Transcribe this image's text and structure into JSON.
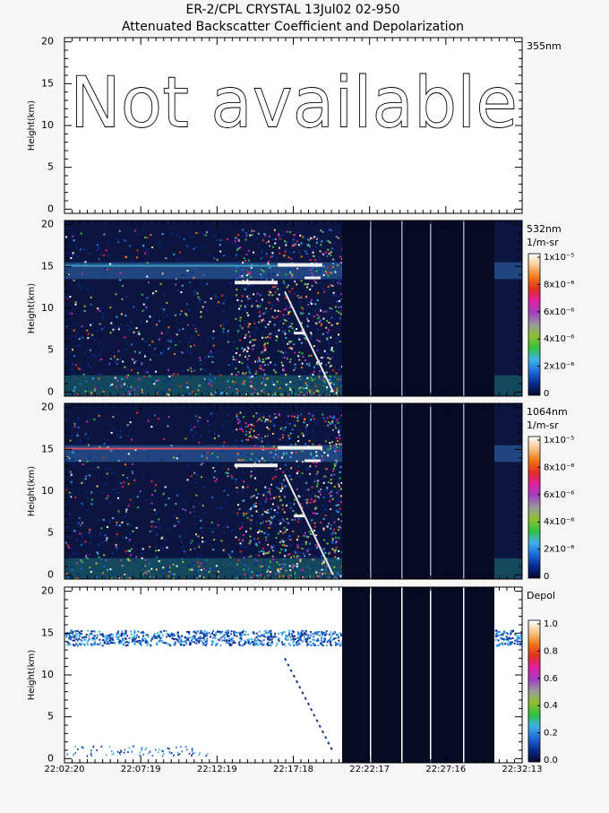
{
  "title": "ER-2/CPL CRYSTAL 13Jul02 02-950",
  "subtitle": "Attenuated Backscatter Coefficient and Depolarization",
  "xticks": [
    "22:02:20",
    "22:07:19",
    "22:12:19",
    "22:17:18",
    "22:22:17",
    "22:27:16",
    "22:32:13"
  ],
  "colormap": [
    "#05082a",
    "#0a2a8c",
    "#1e6ad8",
    "#40b0e8",
    "#30c040",
    "#90c030",
    "#9a9a9a",
    "#a040c0",
    "#e020a0",
    "#e03020",
    "#f07818",
    "#f8c890",
    "#ffffff"
  ],
  "chart_data": [
    {
      "type": "heatmap",
      "label": "355nm",
      "annotation": "Not available",
      "y_label": "Height(km)",
      "ylim": [
        -0.5,
        20.5
      ],
      "yticks": [
        0,
        5,
        10,
        15,
        20
      ]
    },
    {
      "type": "heatmap",
      "label": "532nm",
      "units": "1/m-sr",
      "y_label": "Height(km)",
      "ylim": [
        -0.5,
        20.5
      ],
      "yticks": [
        0,
        5,
        10,
        15,
        20
      ],
      "clim": [
        0,
        1e-05
      ],
      "cticks": [
        0,
        {
          "value": 2e-06,
          "label": "2x10⁻⁶"
        },
        {
          "value": 4e-06,
          "label": "4x10⁻⁶"
        },
        {
          "value": 6e-06,
          "label": "6x10⁻⁶"
        },
        {
          "value": 8e-06,
          "label": "8x10⁻⁶"
        },
        {
          "value": 1e-05,
          "label": "1x10⁻⁵"
        }
      ]
    },
    {
      "type": "heatmap",
      "label": "1064nm",
      "units": "1/m-sr",
      "y_label": "Height(km)",
      "ylim": [
        -0.5,
        20.5
      ],
      "yticks": [
        0,
        5,
        10,
        15,
        20
      ],
      "clim": [
        0,
        1e-05
      ],
      "cticks": [
        0,
        {
          "value": 2e-06,
          "label": "2x10⁻⁶"
        },
        {
          "value": 4e-06,
          "label": "4x10⁻⁶"
        },
        {
          "value": 6e-06,
          "label": "6x10⁻⁶"
        },
        {
          "value": 8e-06,
          "label": "8x10⁻⁶"
        },
        {
          "value": 1e-05,
          "label": "1x10⁻⁵"
        }
      ]
    },
    {
      "type": "depol",
      "label": "Depol",
      "y_label": "Height(km)",
      "ylim": [
        -0.5,
        20.5
      ],
      "yticks": [
        0,
        5,
        10,
        15,
        20
      ],
      "clim": [
        0,
        1
      ],
      "cticks": [
        {
          "value": 0,
          "label": "0.0"
        },
        {
          "value": 0.2,
          "label": "0.2"
        },
        {
          "value": 0.4,
          "label": "0.4"
        },
        {
          "value": 0.6,
          "label": "0.6"
        },
        {
          "value": 0.8,
          "label": "0.8"
        },
        {
          "value": 1,
          "label": "1.0"
        }
      ]
    }
  ]
}
